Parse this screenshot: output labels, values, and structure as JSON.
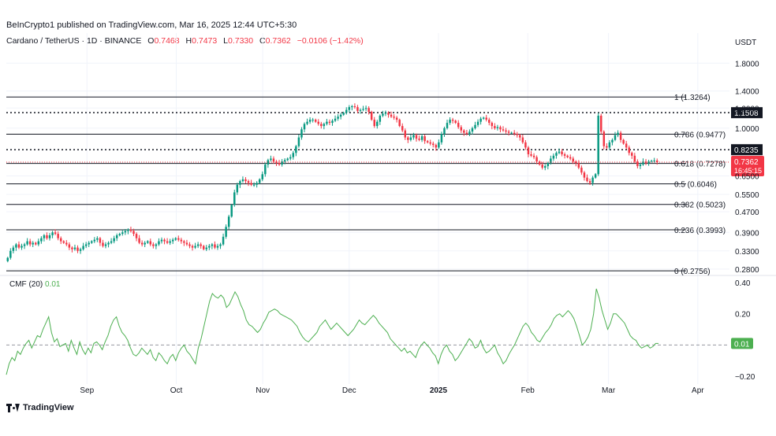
{
  "header": {
    "published": "BeInCrypto1 published on TradingView.com, Mar 16, 2025 12:44 UTC+5:30",
    "symbol": "Cardano / TetherUS · 1D · BINANCE",
    "ohlc": {
      "o_label": "O",
      "o": "0.7468",
      "h_label": "H",
      "h": "0.7473",
      "l_label": "L",
      "l": "0.7330",
      "c_label": "C",
      "c": "0.7362",
      "change": "−0.0106 (−1.42%)"
    }
  },
  "footer": {
    "brand": "TradingView"
  },
  "colors": {
    "up": "#089981",
    "down": "#f23645",
    "cmf": "#4caf50",
    "text": "#131722",
    "grid": "#f0f3fa"
  },
  "chart_data": [
    {
      "type": "candlestick",
      "title": "Cardano / TetherUS · 1D · BINANCE",
      "currency": "USDT",
      "y_scale": "log",
      "ylim": [
        0.27,
        2.05
      ],
      "y_ticks": [
        "1.8000",
        "1.4000",
        "1.2000",
        "1.0000",
        "0.6500",
        "0.5500",
        "0.4700",
        "0.3900",
        "0.3300",
        "0.2800"
      ],
      "y_tick_values": [
        1.8,
        1.4,
        1.2,
        1.0,
        0.65,
        0.55,
        0.47,
        0.39,
        0.33,
        0.28
      ],
      "x_ticks": [
        "Sep",
        "Oct",
        "Nov",
        "Dec",
        "2025",
        "Feb",
        "Mar",
        "Apr"
      ],
      "x_tick_days": [
        28,
        59,
        89,
        119,
        150,
        181,
        209,
        240
      ],
      "x_range_days": [
        0,
        251
      ],
      "fib_levels": [
        {
          "label": "1 (1.3264)",
          "value": 1.3264
        },
        {
          "label": "0.786 (0.9477)",
          "value": 0.9477
        },
        {
          "label": "0.618 (0.7278)",
          "value": 0.7278
        },
        {
          "label": "0.5 (0.6046)",
          "value": 0.6046
        },
        {
          "label": "0.382 (0.5023)",
          "value": 0.5023
        },
        {
          "label": "0.236 (0.3993)",
          "value": 0.3993
        },
        {
          "label": "0 (0.2756)",
          "value": 0.2756
        }
      ],
      "dotted_levels": [
        {
          "label": "1.1508",
          "value": 1.1508
        },
        {
          "label": "0.8235",
          "value": 0.8235
        }
      ],
      "last_price": {
        "label": "0.7362",
        "value": 0.7362,
        "countdown": "16:45:15"
      },
      "closes": [
        0.31,
        0.33,
        0.34,
        0.35,
        0.34,
        0.345,
        0.35,
        0.36,
        0.35,
        0.355,
        0.35,
        0.36,
        0.37,
        0.38,
        0.37,
        0.38,
        0.39,
        0.385,
        0.37,
        0.36,
        0.355,
        0.35,
        0.34,
        0.335,
        0.34,
        0.33,
        0.335,
        0.345,
        0.35,
        0.355,
        0.36,
        0.365,
        0.37,
        0.355,
        0.345,
        0.35,
        0.355,
        0.36,
        0.37,
        0.38,
        0.385,
        0.39,
        0.395,
        0.4,
        0.395,
        0.385,
        0.37,
        0.355,
        0.35,
        0.355,
        0.36,
        0.35,
        0.345,
        0.35,
        0.36,
        0.365,
        0.36,
        0.355,
        0.36,
        0.365,
        0.37,
        0.365,
        0.36,
        0.355,
        0.35,
        0.345,
        0.34,
        0.345,
        0.35,
        0.345,
        0.335,
        0.34,
        0.345,
        0.35,
        0.34,
        0.345,
        0.35,
        0.375,
        0.41,
        0.45,
        0.5,
        0.56,
        0.6,
        0.62,
        0.63,
        0.62,
        0.61,
        0.6,
        0.6,
        0.61,
        0.63,
        0.66,
        0.72,
        0.75,
        0.76,
        0.74,
        0.73,
        0.72,
        0.74,
        0.75,
        0.76,
        0.77,
        0.8,
        0.85,
        0.92,
        0.99,
        1.04,
        1.06,
        1.08,
        1.08,
        1.06,
        1.04,
        1.02,
        1.04,
        1.06,
        1.05,
        1.07,
        1.09,
        1.11,
        1.13,
        1.15,
        1.18,
        1.21,
        1.22,
        1.21,
        1.17,
        1.18,
        1.19,
        1.2,
        1.16,
        1.08,
        1.02,
        1.06,
        1.12,
        1.14,
        1.15,
        1.13,
        1.11,
        1.1,
        1.08,
        1.02,
        0.98,
        0.92,
        0.9,
        0.92,
        0.94,
        0.91,
        0.9,
        0.93,
        0.89,
        0.88,
        0.87,
        0.86,
        0.84,
        0.88,
        0.95,
        1.0,
        1.05,
        1.08,
        1.07,
        1.05,
        1.01,
        0.98,
        0.96,
        0.95,
        0.97,
        1.0,
        1.03,
        1.06,
        1.09,
        1.1,
        1.08,
        1.05,
        1.02,
        1.0,
        1.01,
        0.99,
        0.98,
        0.97,
        0.96,
        0.96,
        0.95,
        0.94,
        0.92,
        0.88,
        0.84,
        0.79,
        0.78,
        0.77,
        0.74,
        0.72,
        0.7,
        0.71,
        0.73,
        0.76,
        0.78,
        0.8,
        0.81,
        0.79,
        0.78,
        0.77,
        0.76,
        0.74,
        0.73,
        0.7,
        0.67,
        0.64,
        0.62,
        0.61,
        0.64,
        0.66,
        1.12,
        0.97,
        0.85,
        0.84,
        0.88,
        0.9,
        0.94,
        0.96,
        0.9,
        0.87,
        0.84,
        0.8,
        0.78,
        0.74,
        0.71,
        0.72,
        0.74,
        0.73,
        0.74,
        0.745,
        0.7468,
        0.7362
      ],
      "volatility": [
        0.025
      ],
      "cmf": {
        "label": "CMF (20)",
        "value": "0.01",
        "value_num": 0.01,
        "ylim": [
          -0.25,
          0.42
        ],
        "y_ticks": [
          "0.40",
          "0.20",
          "−0.20"
        ],
        "y_tick_values": [
          0.4,
          0.2,
          -0.2
        ],
        "zero_line": 0,
        "values": [
          -0.19,
          -0.12,
          -0.08,
          -0.1,
          -0.04,
          -0.06,
          -0.02,
          0.01,
          0.03,
          -0.02,
          0.02,
          0.06,
          0.05,
          0.1,
          0.14,
          0.18,
          0.08,
          0.02,
          0.04,
          -0.01,
          0.0,
          0.01,
          -0.04,
          0.03,
          -0.02,
          -0.06,
          0.02,
          -0.03,
          -0.06,
          -0.02,
          -0.05,
          0.01,
          0.02,
          0.0,
          -0.03,
          0.02,
          0.06,
          0.12,
          0.16,
          0.18,
          0.12,
          0.08,
          0.06,
          0.03,
          -0.02,
          -0.06,
          -0.07,
          -0.05,
          -0.02,
          -0.04,
          -0.06,
          -0.03,
          -0.08,
          -0.1,
          -0.05,
          -0.07,
          -0.1,
          -0.12,
          -0.08,
          -0.06,
          -0.1,
          -0.05,
          -0.02,
          0.0,
          -0.04,
          -0.06,
          -0.09,
          -0.12,
          -0.02,
          0.04,
          0.12,
          0.2,
          0.28,
          0.33,
          0.31,
          0.3,
          0.32,
          0.3,
          0.24,
          0.26,
          0.3,
          0.34,
          0.31,
          0.26,
          0.22,
          0.16,
          0.13,
          0.12,
          0.1,
          0.08,
          0.1,
          0.14,
          0.17,
          0.21,
          0.22,
          0.23,
          0.22,
          0.2,
          0.19,
          0.18,
          0.17,
          0.16,
          0.14,
          0.12,
          0.08,
          0.05,
          0.03,
          0.02,
          0.04,
          0.06,
          0.08,
          0.12,
          0.14,
          0.16,
          0.13,
          0.1,
          0.12,
          0.14,
          0.12,
          0.1,
          0.08,
          0.06,
          0.08,
          0.1,
          0.13,
          0.16,
          0.14,
          0.13,
          0.15,
          0.17,
          0.19,
          0.17,
          0.14,
          0.12,
          0.1,
          0.08,
          0.04,
          0.02,
          0.0,
          -0.02,
          -0.04,
          -0.02,
          -0.05,
          -0.04,
          -0.06,
          -0.08,
          -0.03,
          0.0,
          0.02,
          0.0,
          -0.02,
          -0.05,
          -0.07,
          -0.12,
          -0.06,
          -0.02,
          0.0,
          -0.04,
          -0.06,
          -0.1,
          -0.08,
          -0.05,
          -0.02,
          0.01,
          0.04,
          0.02,
          -0.02,
          -0.01,
          0.03,
          -0.02,
          -0.05,
          -0.04,
          -0.02,
          0.0,
          -0.05,
          -0.08,
          -0.12,
          -0.1,
          -0.06,
          -0.03,
          0.0,
          0.04,
          0.08,
          0.12,
          0.14,
          0.12,
          0.08,
          0.06,
          0.03,
          0.02,
          0.05,
          0.08,
          0.1,
          0.13,
          0.17,
          0.19,
          0.2,
          0.18,
          0.2,
          0.22,
          0.2,
          0.17,
          0.12,
          0.06,
          0.0,
          0.02,
          0.05,
          0.1,
          0.2,
          0.36,
          0.3,
          0.22,
          0.16,
          0.1,
          0.14,
          0.2,
          0.2,
          0.18,
          0.16,
          0.14,
          0.1,
          0.06,
          0.04,
          0.03,
          0.0,
          -0.02,
          -0.01,
          0.0,
          -0.02,
          -0.01,
          0.01,
          0.01
        ]
      }
    }
  ]
}
